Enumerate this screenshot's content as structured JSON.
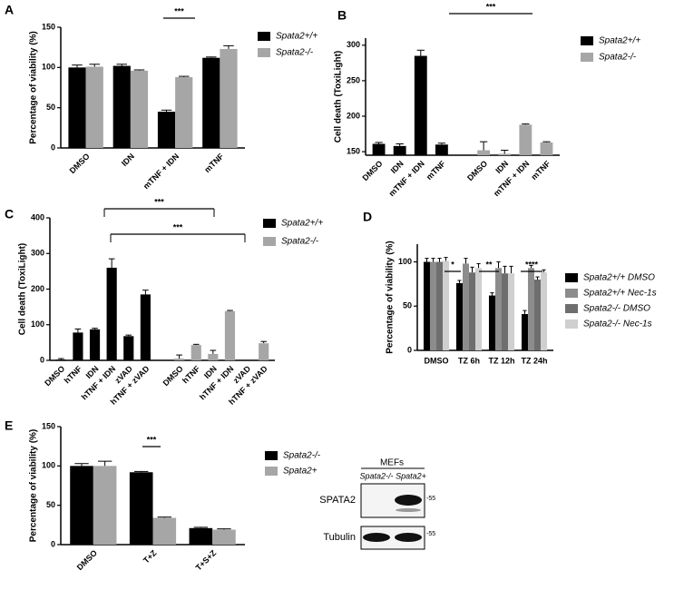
{
  "chart_data": [
    {
      "type": "bar",
      "panel": "A",
      "ylabel": "Percentage of viability (%)",
      "categories": [
        "DMSO",
        "IDN",
        "mTNF + IDN",
        "mTNF"
      ],
      "series": [
        {
          "name": "Spata2+/+",
          "color": "#000000",
          "values": [
            100,
            102,
            45,
            112
          ],
          "errors": [
            3,
            2,
            2,
            1
          ]
        },
        {
          "name": "Spata2-/-",
          "color": "#a6a6a6",
          "values": [
            101,
            96,
            88,
            123
          ],
          "errors": [
            3,
            1,
            1,
            4
          ]
        }
      ],
      "ylim": [
        0,
        150
      ],
      "yticks": [
        0,
        50,
        100,
        150
      ],
      "annotations": [
        "***"
      ]
    },
    {
      "type": "bar",
      "panel": "B",
      "ylabel": "Cell death (ToxiLight)",
      "categories": [
        "DMSO",
        "IDN",
        "mTNF + IDN",
        "mTNF",
        "DMSO",
        "IDN",
        "mTNF + IDN",
        "mTNF"
      ],
      "series": [
        {
          "name": "Spata2+/+",
          "color": "#000000",
          "values": [
            161,
            158,
            285,
            160,
            null,
            null,
            null,
            null
          ],
          "errors": [
            2,
            3,
            8,
            2,
            null,
            null,
            null,
            null
          ]
        },
        {
          "name": "Spata2-/-",
          "color": "#a6a6a6",
          "values": [
            null,
            null,
            null,
            null,
            152,
            147,
            188,
            163
          ],
          "errors": [
            null,
            null,
            null,
            null,
            12,
            5,
            1,
            1
          ]
        }
      ],
      "ylim": [
        145,
        310
      ],
      "yticks": [
        150,
        200,
        250,
        300
      ],
      "annotations": [
        "***"
      ]
    },
    {
      "type": "bar",
      "panel": "C",
      "ylabel": "Cell death (ToxiLight)",
      "categories": [
        "DMSO",
        "hTNF",
        "IDN",
        "hTNF + IDN",
        "zVAD",
        "hTNF + zVAD",
        "DMSO",
        "hTNF",
        "IDN",
        "hTNF + IDN",
        "zVAD",
        "hTNF + zVAD"
      ],
      "series": [
        {
          "name": "Spata2+/+",
          "color": "#000000",
          "values": [
            2,
            78,
            87,
            260,
            68,
            185,
            null,
            null,
            null,
            null,
            null,
            null
          ],
          "errors": [
            3,
            10,
            3,
            25,
            3,
            12,
            null,
            null,
            null,
            null,
            null,
            null
          ]
        },
        {
          "name": "Spata2-/-",
          "color": "#a6a6a6",
          "values": [
            null,
            null,
            null,
            null,
            null,
            null,
            5,
            43,
            18,
            138,
            0,
            48
          ],
          "errors": [
            null,
            null,
            null,
            null,
            null,
            null,
            10,
            2,
            10,
            2,
            0,
            5
          ]
        }
      ],
      "ylim": [
        0,
        400
      ],
      "yticks": [
        0,
        100,
        200,
        300,
        400
      ],
      "annotations": [
        "***",
        "***"
      ]
    },
    {
      "type": "bar",
      "panel": "D",
      "ylabel": "Percentage of viability (%)",
      "categories": [
        "DMSO",
        "TZ 6h",
        "TZ 12h",
        "TZ 24h"
      ],
      "series": [
        {
          "name": "Spata2+/+ DMSO",
          "color": "#000000",
          "values": [
            100,
            76,
            62,
            41
          ],
          "errors": [
            4,
            3,
            3,
            4
          ]
        },
        {
          "name": "Spata2+/+ Nec-1s",
          "color": "#8c8c8c",
          "values": [
            100,
            98,
            93,
            93
          ],
          "errors": [
            4,
            6,
            7,
            3
          ]
        },
        {
          "name": "Spata2-/- DMSO",
          "color": "#6e6e6e",
          "values": [
            100,
            88,
            87,
            80
          ],
          "errors": [
            4,
            6,
            8,
            3
          ]
        },
        {
          "name": "Spata2-/- Nec-1s",
          "color": "#cfcfcf",
          "values": [
            101,
            93,
            87,
            88
          ],
          "errors": [
            4,
            5,
            8,
            3
          ]
        }
      ],
      "ylim": [
        0,
        120
      ],
      "yticks": [
        0,
        50,
        100
      ],
      "annotations": [
        "*",
        "**",
        "****"
      ]
    },
    {
      "type": "bar",
      "panel": "E",
      "ylabel": "Percentage of viability (%)",
      "categories": [
        "DMSO",
        "T+Z",
        "T+S+Z"
      ],
      "series": [
        {
          "name": "Spata2-/-",
          "color": "#000000",
          "values": [
            100,
            92,
            21
          ],
          "errors": [
            3,
            1,
            1
          ]
        },
        {
          "name": "Spata2+",
          "color": "#a6a6a6",
          "values": [
            100,
            34,
            19
          ],
          "errors": [
            6,
            1,
            1
          ]
        }
      ],
      "ylim": [
        0,
        150
      ],
      "yticks": [
        0,
        50,
        100,
        150
      ],
      "annotations": [
        "***"
      ]
    }
  ],
  "blot": {
    "header": "MEFs",
    "lanes": [
      "Spata2-/-",
      "Spata2+"
    ],
    "rows": [
      {
        "label": "SPATA2",
        "marker": "-55"
      },
      {
        "label": "Tubulin",
        "marker": "-55"
      }
    ]
  }
}
